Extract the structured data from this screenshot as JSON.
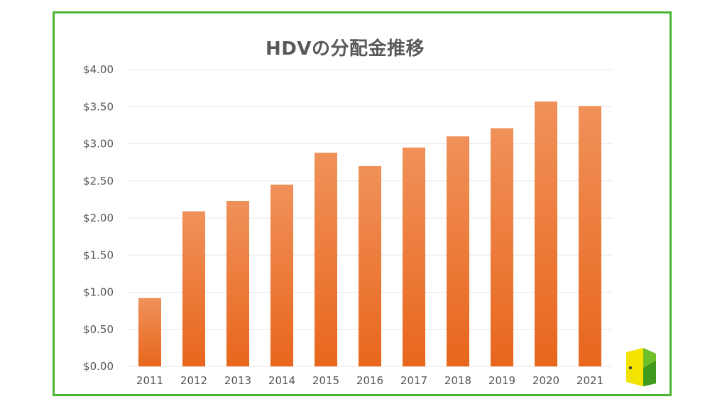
{
  "chart_data": {
    "type": "bar",
    "title": "HDVの分配金推移",
    "xlabel": "",
    "ylabel": "",
    "categories": [
      "2011",
      "2012",
      "2013",
      "2014",
      "2015",
      "2016",
      "2017",
      "2018",
      "2019",
      "2020",
      "2021"
    ],
    "values": [
      0.92,
      2.09,
      2.23,
      2.45,
      2.88,
      2.7,
      2.95,
      3.1,
      3.21,
      3.57,
      3.51
    ],
    "ylim": [
      0,
      4
    ],
    "yticks": [
      "$0.00",
      "$0.50",
      "$1.00",
      "$1.50",
      "$2.00",
      "$2.50",
      "$3.00",
      "$3.50",
      "$4.00"
    ],
    "grid": true,
    "colors": {
      "bar_top": "#f0915a",
      "bar_bottom": "#e8661c",
      "grid": "#e6e6e6",
      "frame": "#4cb535"
    }
  },
  "logo": {
    "icon": "door-icon"
  }
}
